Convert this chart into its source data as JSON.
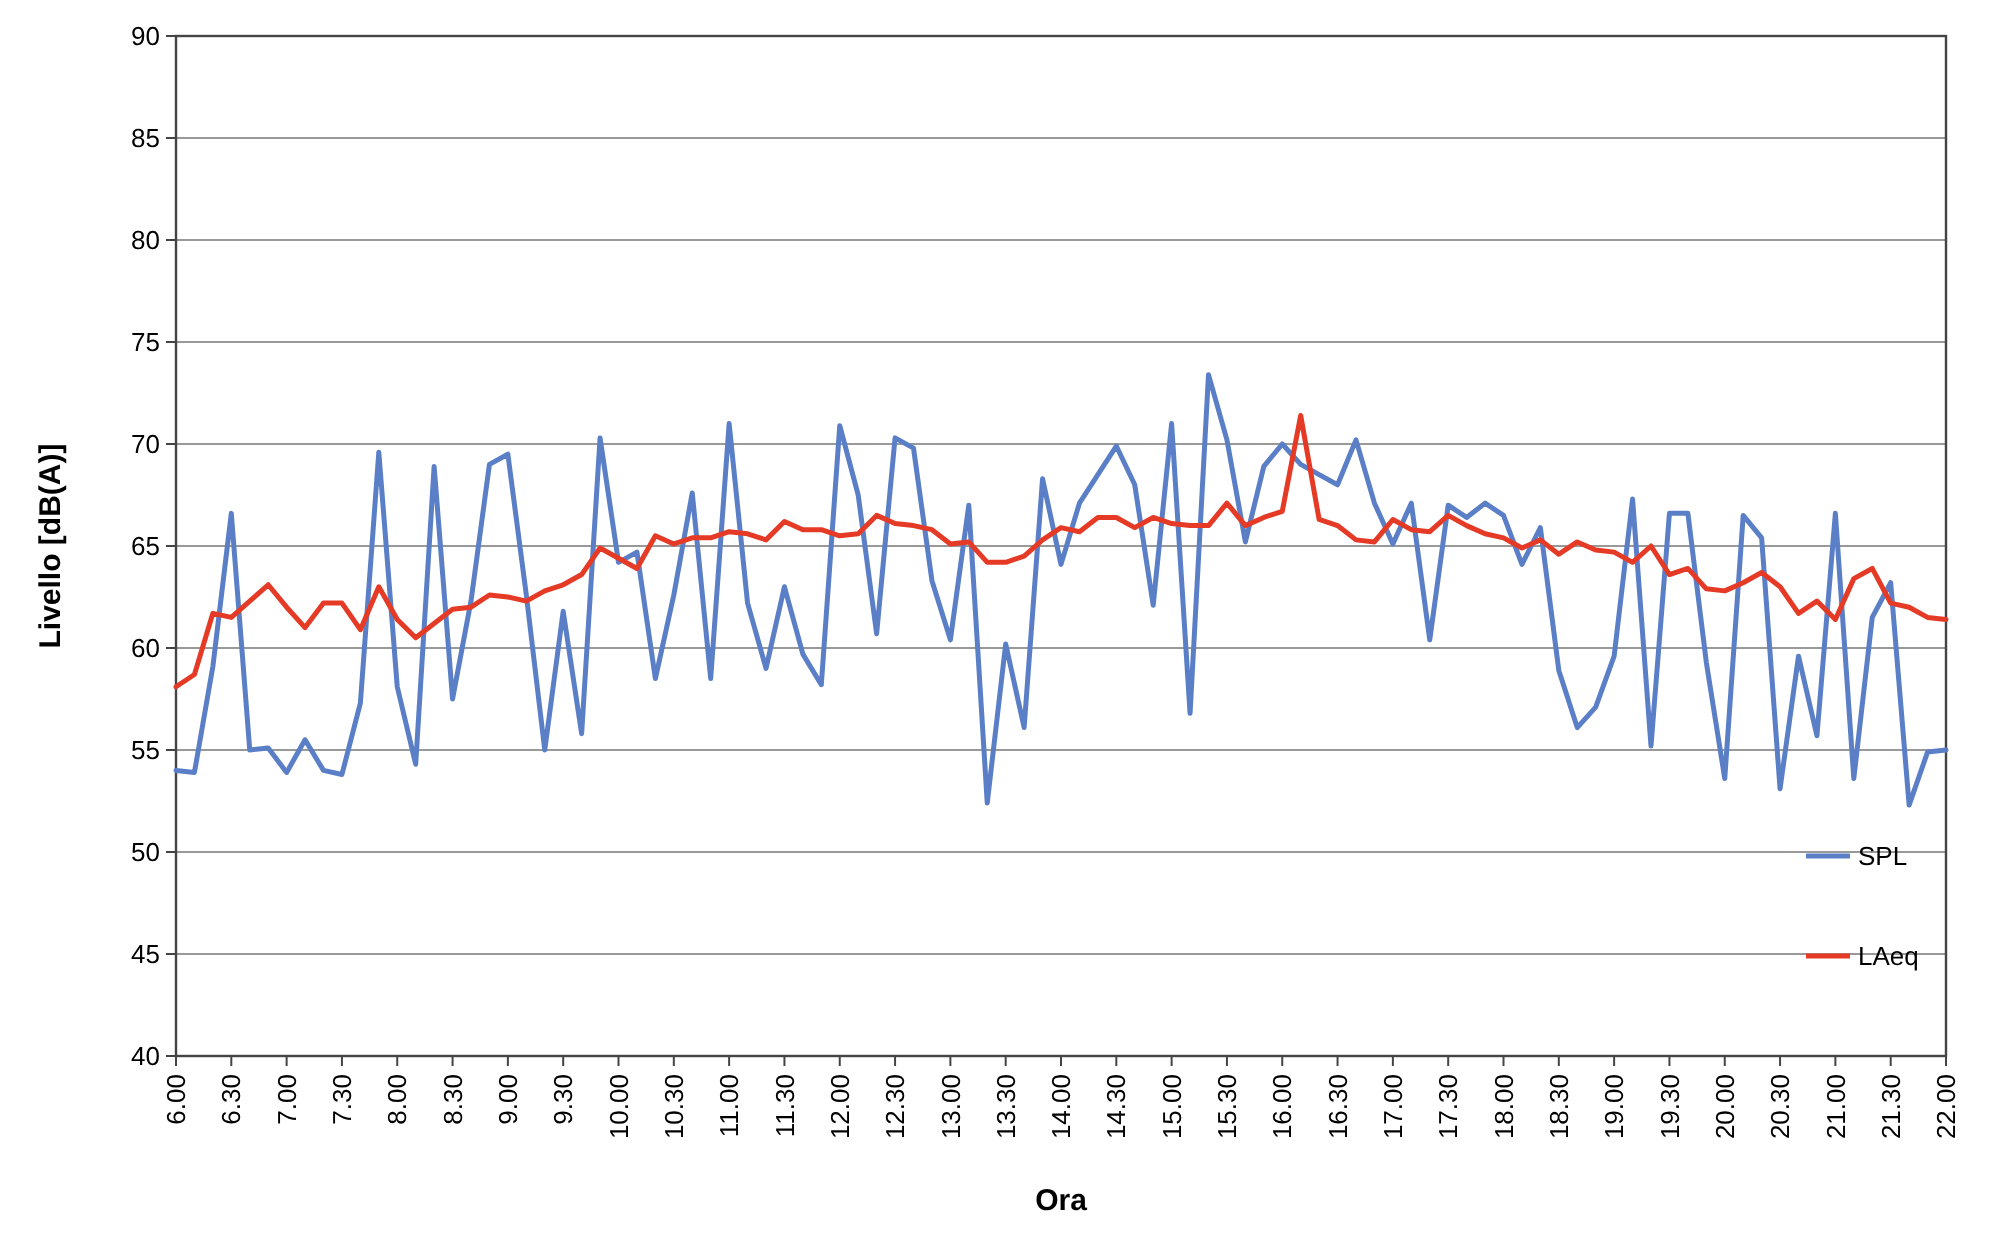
{
  "chart_data": {
    "type": "line",
    "xlabel": "Ora",
    "ylabel": "Livello [dB(A)]",
    "categories": [
      "6.00",
      null,
      null,
      "6.30",
      null,
      null,
      "7.00",
      null,
      null,
      "7.30",
      null,
      null,
      "8.00",
      null,
      null,
      "8.30",
      null,
      null,
      "9.00",
      null,
      null,
      "9.30",
      null,
      null,
      "10.00",
      null,
      null,
      "10.30",
      null,
      null,
      "11.00",
      null,
      null,
      "11.30",
      null,
      null,
      "12.00",
      null,
      null,
      "12.30",
      null,
      null,
      "13.00",
      null,
      null,
      "13.30",
      null,
      null,
      "14.00",
      null,
      null,
      "14.30",
      null,
      null,
      "15.00",
      null,
      null,
      "15.30",
      null,
      null,
      "16.00",
      null,
      null,
      "16.30",
      null,
      null,
      "17.00",
      null,
      null,
      "17.30",
      null,
      null,
      "18.00",
      null,
      null,
      "18.30",
      null,
      null,
      "19.00",
      null,
      null,
      "19.30",
      null,
      null,
      "20.00",
      null,
      null,
      "20.30",
      null,
      null,
      "21.00",
      null,
      null,
      "21.30",
      null,
      null,
      "22.00"
    ],
    "series": [
      {
        "name": "SPL",
        "color": "#5b7fc6",
        "values": [
          54.0,
          53.9,
          59.1,
          66.6,
          55.0,
          55.1,
          53.9,
          55.5,
          54.0,
          53.8,
          57.3,
          69.6,
          58.1,
          54.3,
          68.9,
          57.5,
          62.3,
          69.0,
          69.5,
          62.6,
          55.0,
          61.8,
          55.8,
          70.3,
          64.2,
          64.7,
          58.5,
          62.6,
          67.6,
          58.5,
          71.0,
          62.2,
          59.0,
          63.0,
          59.7,
          58.2,
          70.9,
          67.5,
          60.7,
          70.3,
          69.8,
          63.3,
          60.4,
          67.0,
          52.4,
          60.2,
          56.1,
          68.3,
          64.1,
          67.1,
          68.5,
          69.9,
          68.0,
          62.1,
          71.0,
          56.8,
          73.4,
          70.2,
          65.2,
          68.9,
          70.0,
          69.0,
          68.5,
          68.0,
          70.2,
          67.1,
          65.1,
          67.1,
          60.4,
          67.0,
          66.4,
          67.1,
          66.5,
          64.1,
          65.9,
          58.9,
          56.1,
          57.1,
          59.6,
          67.3,
          55.2,
          66.6,
          66.6,
          59.3,
          53.6,
          66.5,
          65.4,
          53.1,
          59.6,
          55.7,
          66.6,
          53.6,
          61.5,
          63.2,
          52.3,
          54.9,
          55.0
        ]
      },
      {
        "name": "LAeq",
        "color": "#e53a26",
        "values": [
          58.1,
          58.7,
          61.7,
          61.5,
          62.3,
          63.1,
          62.0,
          61.0,
          62.2,
          62.2,
          60.9,
          63.0,
          61.4,
          60.5,
          61.2,
          61.9,
          62.0,
          62.6,
          62.5,
          62.3,
          62.8,
          63.1,
          63.6,
          64.9,
          64.4,
          63.9,
          65.5,
          65.1,
          65.4,
          65.4,
          65.7,
          65.6,
          65.3,
          66.2,
          65.8,
          65.8,
          65.5,
          65.6,
          66.5,
          66.1,
          66.0,
          65.8,
          65.1,
          65.2,
          64.2,
          64.2,
          64.5,
          65.3,
          65.9,
          65.7,
          66.4,
          66.4,
          65.9,
          66.4,
          66.1,
          66.0,
          66.0,
          67.1,
          66.0,
          66.4,
          66.7,
          71.4,
          66.3,
          66.0,
          65.3,
          65.2,
          66.3,
          65.8,
          65.7,
          66.5,
          66.0,
          65.6,
          65.4,
          64.9,
          65.3,
          64.6,
          65.2,
          64.8,
          64.7,
          64.2,
          65.0,
          63.6,
          63.9,
          62.9,
          62.8,
          63.2,
          63.7,
          63.0,
          61.7,
          62.3,
          61.4,
          63.4,
          63.9,
          62.2,
          62.0,
          61.5,
          61.4
        ]
      }
    ],
    "ylim": [
      40,
      90
    ],
    "yticks": [
      40,
      45,
      50,
      55,
      60,
      65,
      70,
      75,
      80,
      85,
      90
    ],
    "grid": "y",
    "legend": "bottom right",
    "marker": "none",
    "line_style": "solid"
  }
}
